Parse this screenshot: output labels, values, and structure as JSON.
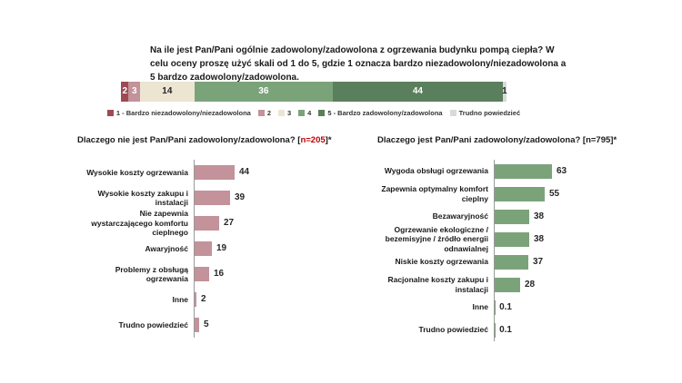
{
  "title": "Na ile jest Pan/Pani ogólnie zadowolony/zadowolona z ogrzewania budynku pompą ciepła? W celu oceny proszę użyć skali od 1 do 5, gdzie 1 oznacza bardzo niezadowolony/niezadowolona a 5 bardzo zadowolony/zadowolona.",
  "colors": {
    "highlight_red": "#c00000",
    "axis_line": "#9a9a9a",
    "text": "#1a1a1a",
    "background": "#ffffff"
  },
  "chart_data": [
    {
      "id": "satisfaction-distribution",
      "type": "bar",
      "subtype": "stacked-horizontal-100pct",
      "unit": "percent",
      "legend_position": "bottom",
      "segments": [
        {
          "legend": "1 - Bardzo niezadowolony/niezadowolona",
          "value": 2,
          "color": "#9d4a54",
          "label_color": "#ffffff"
        },
        {
          "legend": "2",
          "value": 3,
          "color": "#c3929a",
          "label_color": "#ffffff"
        },
        {
          "legend": "3",
          "value": 14,
          "color": "#ece5d2",
          "label_color": "#262626"
        },
        {
          "legend": "4",
          "value": 36,
          "color": "#7ba37a",
          "label_color": "#ffffff"
        },
        {
          "legend": "5 - Bardzo zadowolony/zadowolona",
          "value": 44,
          "color": "#5a7f5c",
          "label_color": "#ffffff"
        },
        {
          "legend": "Trudno powiedzieć",
          "value": 1,
          "color": "#d9d9d9",
          "label_color": "#262626"
        }
      ]
    },
    {
      "id": "reasons-dissatisfied",
      "type": "bar",
      "subtype": "horizontal",
      "title_parts": {
        "prefix": "Dlaczego nie jest Pan/Pani zadowolony/zadowolona? [",
        "highlight": "n=205",
        "suffix": "]*"
      },
      "bar_color": "#c3929a",
      "xlim": [
        0,
        100
      ],
      "grid": false,
      "categories": [
        "Wysokie koszty ogrzewania",
        "Wysokie koszty zakupu i instalacji",
        "Nie zapewnia wystarczającego komfortu cieplnego",
        "Awaryjność",
        "Problemy z obsługą ogrzewania",
        "Inne",
        "Trudno powiedzieć"
      ],
      "values": [
        44,
        39,
        27,
        19,
        16,
        2,
        5
      ]
    },
    {
      "id": "reasons-satisfied",
      "type": "bar",
      "subtype": "horizontal",
      "title": "Dlaczego jest Pan/Pani zadowolony/zadowolona? [n=795]*",
      "bar_color": "#7ba37a",
      "xlim": [
        0,
        100
      ],
      "grid": false,
      "categories": [
        "Wygoda obsługi ogrzewania",
        "Zapewnia optymalny komfort cieplny",
        "Bezawaryjność",
        "Ogrzewanie ekologiczne / bezemisyjne / źródło energii odnawialnej",
        "Niskie koszty ogrzewania",
        "Racjonalne koszty zakupu i instalacji",
        "Inne",
        "Trudno powiedzieć"
      ],
      "values": [
        63,
        55,
        38,
        38,
        37,
        28,
        0.1,
        0.1
      ]
    }
  ]
}
